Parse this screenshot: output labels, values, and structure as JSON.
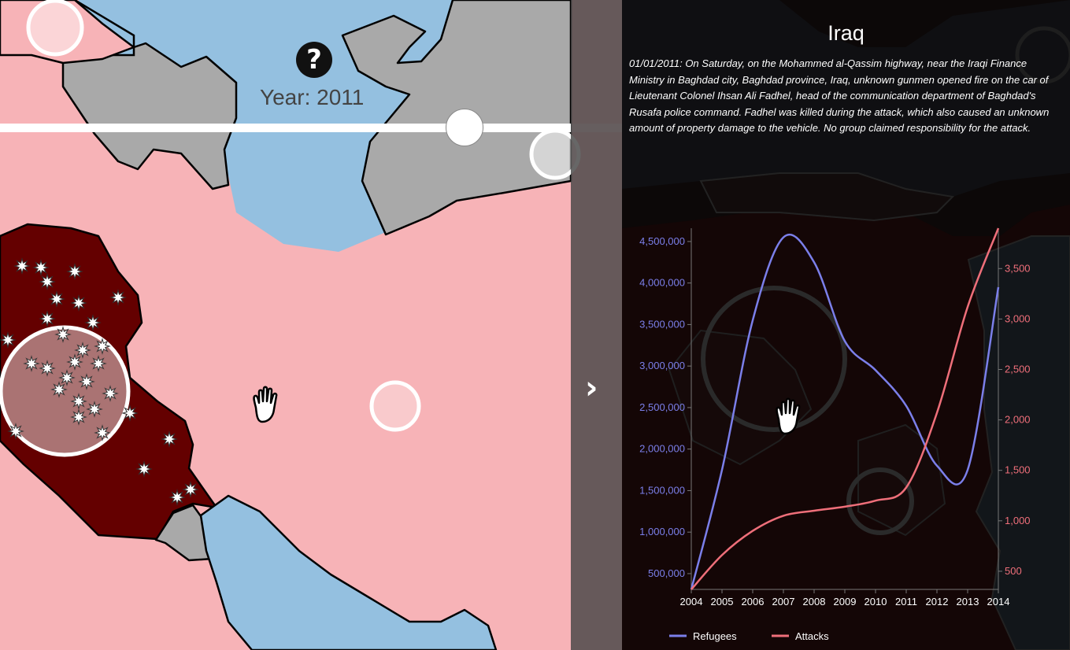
{
  "map": {
    "help_icon": "question-circle-icon",
    "help_glyph": "?",
    "year_label": "Year: 2011",
    "pan_icon": "hand-icon"
  },
  "slider": {
    "year": 2011,
    "range": [
      2004,
      2014
    ]
  },
  "sidebar_toggle": {
    "icon": "chevron-right-icon",
    "glyph": "›"
  },
  "panel": {
    "country": "Iraq",
    "description": "01/01/2011: On Saturday, on the Mohammed al-Qassim highway, near the Iraqi Finance Ministry in Baghdad city, Baghdad province, Iraq, unknown gunmen opened fire on the car of Lieutenant Colonel Ihsan Ali Fadhel, head of the communication department of Baghdad's Rusafa police command. Fadhel was killed during the attack, which also caused an unknown amount of property damage to the vehicle. No group claimed responsibility for the attack."
  },
  "colors": {
    "refugees": "#7b7fea",
    "attacks": "#ef6f7a",
    "highlight_country": "#640000",
    "land": "#f7b3b7",
    "neighbor": "#a9a9a9",
    "water": "#94c0e0"
  },
  "chart_data": {
    "type": "line",
    "x": [
      2004,
      2005,
      2006,
      2007,
      2008,
      2009,
      2010,
      2011,
      2012,
      2013,
      2014
    ],
    "x_ticks": [
      "2004",
      "2005",
      "2006",
      "2007",
      "2008",
      "2009",
      "2010",
      "2011",
      "2012",
      "2013",
      "2014"
    ],
    "series": [
      {
        "name": "Refugees",
        "axis": "left",
        "values": [
          310000,
          1750000,
          3550000,
          4550000,
          4250000,
          3300000,
          2950000,
          2520000,
          1800000,
          1750000,
          3950000
        ]
      },
      {
        "name": "Attacks",
        "axis": "right",
        "values": [
          320,
          660,
          900,
          1050,
          1100,
          1140,
          1200,
          1330,
          2070,
          3120,
          3900
        ]
      }
    ],
    "ylim_left": [
      310000,
      4660000
    ],
    "ylim_right": [
      320,
      3900
    ],
    "left_ticks": [
      {
        "value": 500000,
        "label": "500,000"
      },
      {
        "value": 1000000,
        "label": "1,000,000"
      },
      {
        "value": 1500000,
        "label": "1,500,000"
      },
      {
        "value": 2000000,
        "label": "2,000,000"
      },
      {
        "value": 2500000,
        "label": "2,500,000"
      },
      {
        "value": 3000000,
        "label": "3,000,000"
      },
      {
        "value": 3500000,
        "label": "3,500,000"
      },
      {
        "value": 4000000,
        "label": "4,000,000"
      },
      {
        "value": 4500000,
        "label": "4,500,000"
      }
    ],
    "right_ticks": [
      {
        "value": 500,
        "label": "500"
      },
      {
        "value": 1000,
        "label": "1,000"
      },
      {
        "value": 1500,
        "label": "1,500"
      },
      {
        "value": 2000,
        "label": "2,000"
      },
      {
        "value": 2500,
        "label": "2,500"
      },
      {
        "value": 3000,
        "label": "3,000"
      },
      {
        "value": 3500,
        "label": "3,500"
      }
    ],
    "legend_position": "bottom-left",
    "legend": [
      "Refugees",
      "Attacks"
    ]
  }
}
